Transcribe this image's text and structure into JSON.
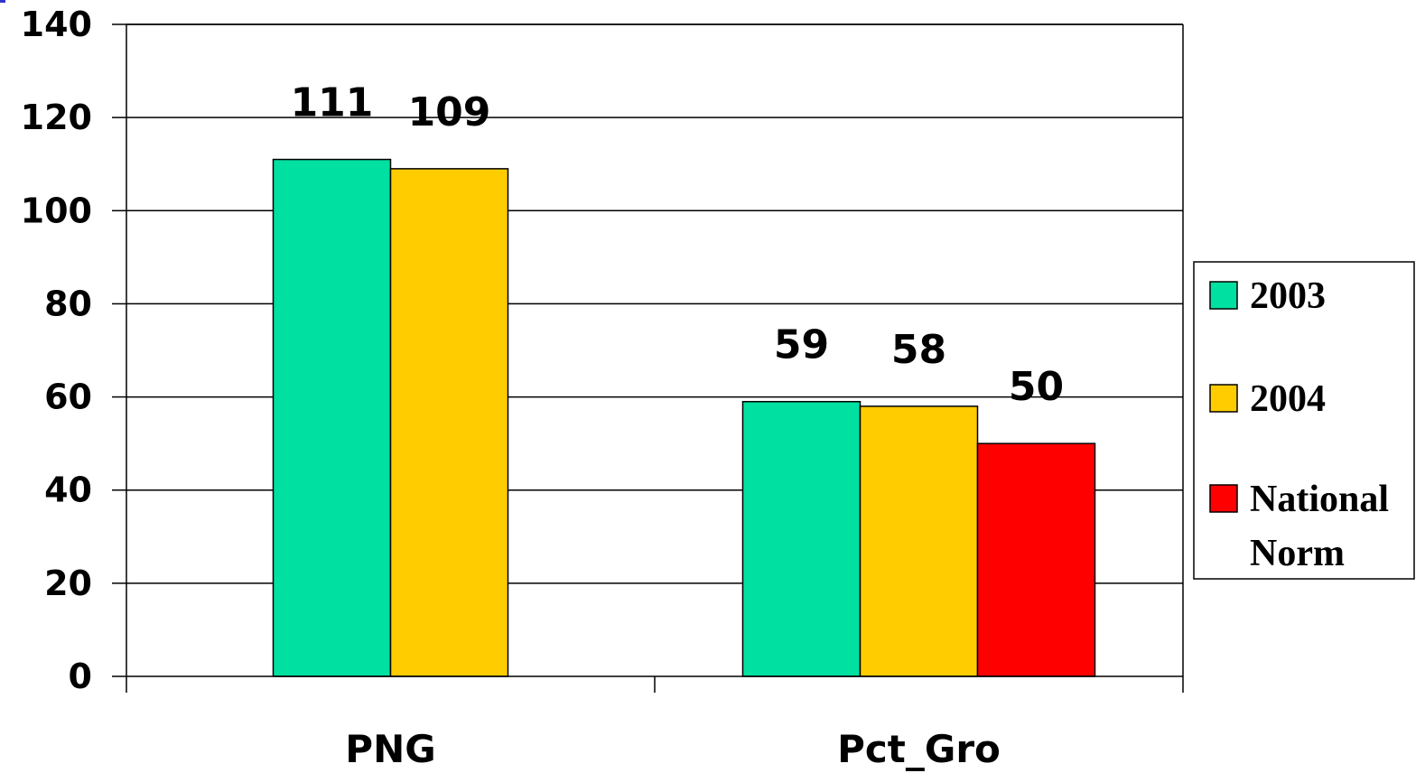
{
  "chart_data": {
    "type": "bar",
    "categories": [
      "PNG",
      "Pct_Gro"
    ],
    "series": [
      {
        "name": "2003",
        "color": "#00e0a0",
        "values": [
          111,
          59
        ]
      },
      {
        "name": "2004",
        "color": "#ffcc00",
        "values": [
          109,
          58
        ]
      },
      {
        "name": "National Norm",
        "color": "#ff0000",
        "values": [
          null,
          50
        ]
      }
    ],
    "data_labels": [
      [
        "111",
        "59"
      ],
      [
        "109",
        "58"
      ],
      [
        null,
        "50"
      ]
    ],
    "title": "",
    "xlabel": "",
    "ylabel": "",
    "ylim": [
      0,
      140
    ],
    "yticks": [
      0,
      20,
      40,
      60,
      80,
      100,
      120,
      140
    ],
    "grid": true,
    "legend": {
      "placement": "right",
      "entries": [
        [
          "2003"
        ],
        [
          "2004"
        ],
        [
          "National",
          "Norm"
        ]
      ]
    }
  }
}
